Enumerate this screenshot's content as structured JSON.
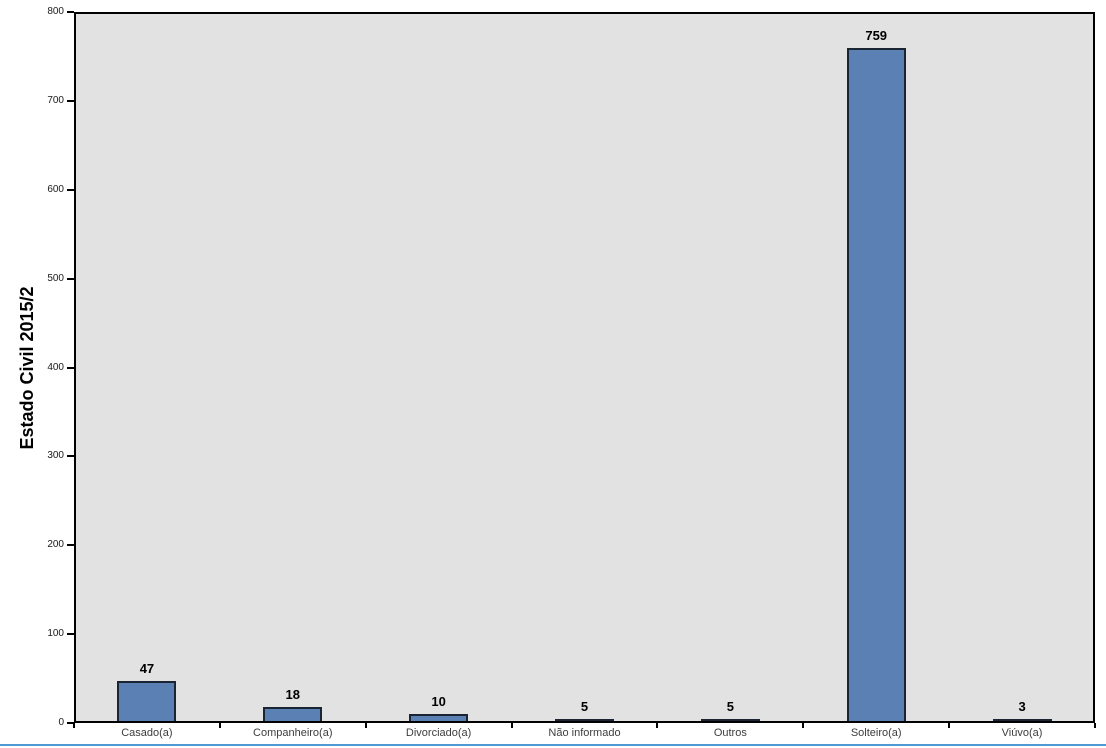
{
  "chart_data": {
    "type": "bar",
    "categories": [
      "Casado(a)",
      "Companheiro(a)",
      "Divorciado(a)",
      "Não informado",
      "Outros",
      "Solteiro(a)",
      "Viúvo(a)"
    ],
    "values": [
      47,
      18,
      10,
      5,
      5,
      759,
      3
    ],
    "title": "",
    "xlabel": "",
    "ylabel": "Estado Civil 2015/2",
    "ylim": [
      0,
      800
    ],
    "yticks": [
      0,
      100,
      200,
      300,
      400,
      500,
      600,
      700,
      800
    ],
    "grid": false,
    "legend": false,
    "data_labels": true,
    "colors": {
      "bar_fill": "#5B81B4",
      "bar_border": "#1B2433",
      "plot_background": "#E2E2E2",
      "axis": "#000000",
      "tick_label": "#1A1A1A",
      "category_label": "#3D3D3D",
      "value_label": "#000000",
      "page_background": "#FFFFFF",
      "bottom_rule": "#4D9AD5"
    }
  }
}
